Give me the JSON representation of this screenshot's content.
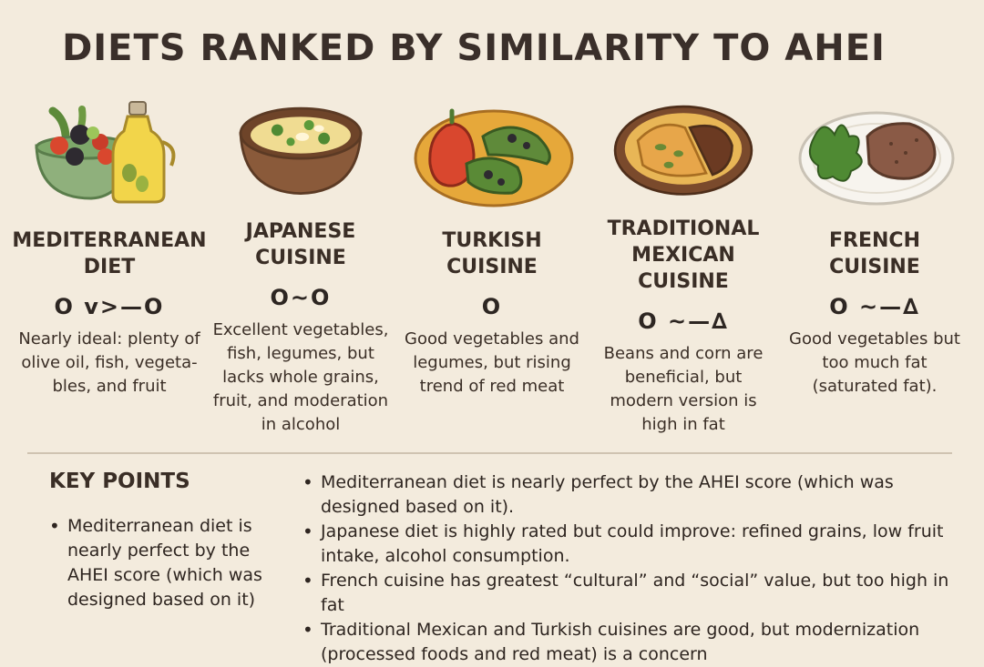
{
  "title": "DIETS RANKED BY SIMILARITY TO AHEI",
  "diets": [
    {
      "name_lines": [
        "MEDITERRANEAN",
        "DIET"
      ],
      "symbols": "O v>—O",
      "description": "Nearly ideal: plenty of olive oil, fish, vegeta-bles, and fruit",
      "illustration": "salad-and-olive-oil-icon"
    },
    {
      "name_lines": [
        "JAPANESE",
        "CUISINE"
      ],
      "symbols": "O~O",
      "description": "Excellent vegetables, fish, legumes, but lacks whole grains, fruit, and moderation in alcohol",
      "illustration": "miso-soup-bowl-icon"
    },
    {
      "name_lines": [
        "TURKISH",
        "CUISINE"
      ],
      "symbols": "O",
      "description": "Good vegetables and legumes, but rising trend of red meat",
      "illustration": "stuffed-peppers-icon"
    },
    {
      "name_lines": [
        "TRADITIONAL",
        "MEXICAN CUISINE"
      ],
      "symbols": "O ~—∆",
      "description": "Beans and corn are beneficial, but modern version is high in fat",
      "illustration": "tacos-plate-icon"
    },
    {
      "name_lines": [
        "FRENCH",
        "CUISINE"
      ],
      "symbols": "O ~—∆",
      "description": "Good vegetables but too much fat (saturated fat).",
      "illustration": "pate-plate-icon"
    }
  ],
  "key_points": {
    "title": "KEY POINTS",
    "left_items": [
      "Mediterranean diet is nearly perfect by the AHEI score (which was designed based on it)"
    ],
    "right_items": [
      "Mediterranean diet is nearly perfect by the AHEI score (which was designed based on it).",
      "Japanese diet is highly rated but could improve: refined grains, low fruit intake, alcohol consumption.",
      "French cuisine has greatest “cultural” and “social” value, but too high in fat",
      "Traditional Mexican and Turkish cuisines are good, but modernization (processed foods and red meat) is a concern"
    ]
  }
}
